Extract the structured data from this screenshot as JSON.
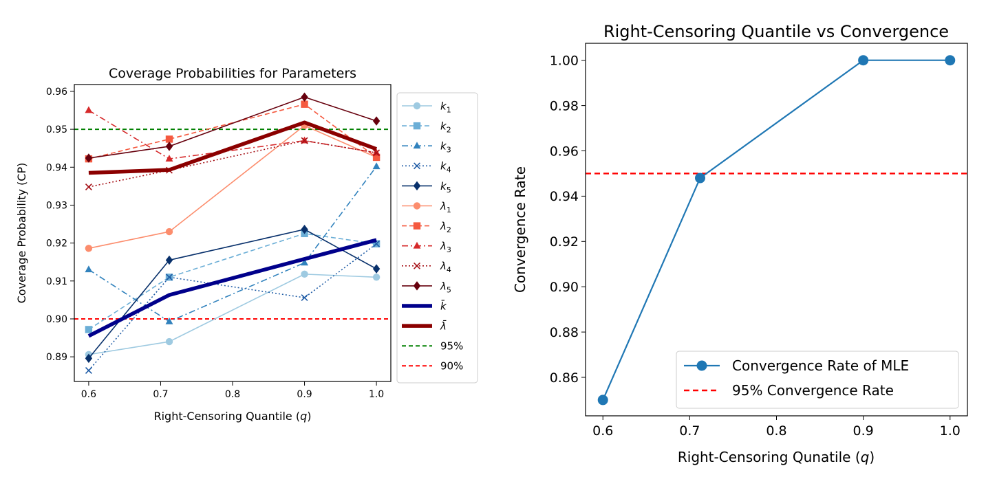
{
  "chart_data": [
    {
      "type": "line",
      "title": "Coverage Probabilities for Parameters",
      "xlabel": "Right-Censoring Quantile (q)",
      "xlabel_main": "Right-Censoring Quantile (",
      "xlabel_var": "q",
      "xlabel_close": ")",
      "ylabel": "Coverage Probability (CP)",
      "xlim": [
        0.58,
        1.02
      ],
      "ylim": [
        0.8835,
        0.9618
      ],
      "x_ticks": [
        0.6,
        0.7,
        0.8,
        0.9,
        1.0
      ],
      "x_tick_labels": [
        "0.6",
        "0.7",
        "0.8",
        "0.9",
        "1.0"
      ],
      "y_ticks": [
        0.89,
        0.9,
        0.91,
        0.92,
        0.93,
        0.94,
        0.95,
        0.96
      ],
      "y_tick_labels": [
        "0.89",
        "0.90",
        "0.91",
        "0.92",
        "0.93",
        "0.94",
        "0.95",
        "0.96"
      ],
      "grid": false,
      "legend_position": "outside-right",
      "x": [
        0.6,
        0.712,
        0.9,
        1.0
      ],
      "series": [
        {
          "name": "k1",
          "sym": "k",
          "sub": "1",
          "color": "#9ecae1",
          "dash": "",
          "marker": "circle",
          "width": 1.6,
          "values": [
            0.8906,
            0.894,
            0.9118,
            0.911
          ]
        },
        {
          "name": "k2",
          "sym": "k",
          "sub": "2",
          "color": "#6baed6",
          "dash": "7,4",
          "marker": "square",
          "width": 1.6,
          "values": [
            0.8972,
            0.911,
            0.9225,
            0.9198
          ]
        },
        {
          "name": "k3",
          "sym": "k",
          "sub": "3",
          "color": "#3182bd",
          "dash": "9,4,2,4",
          "marker": "triangle",
          "width": 1.6,
          "values": [
            0.913,
            0.8993,
            0.9148,
            0.9402
          ]
        },
        {
          "name": "k4",
          "sym": "k",
          "sub": "4",
          "color": "#1e5ba5",
          "dash": "2,3",
          "marker": "x",
          "width": 1.6,
          "values": [
            0.8864,
            0.911,
            0.9056,
            0.9198
          ]
        },
        {
          "name": "k5",
          "sym": "k",
          "sub": "5",
          "color": "#08306b",
          "dash": "",
          "marker": "diamond",
          "width": 1.6,
          "values": [
            0.8896,
            0.9155,
            0.9236,
            0.9132
          ]
        },
        {
          "name": "λ1",
          "sym": "λ",
          "sub": "1",
          "color": "#fc8d6d",
          "dash": "",
          "marker": "circle",
          "width": 1.6,
          "values": [
            0.9186,
            0.923,
            0.951,
            0.9426
          ]
        },
        {
          "name": "λ2",
          "sym": "λ",
          "sub": "2",
          "color": "#f5593f",
          "dash": "7,4",
          "marker": "square",
          "width": 1.6,
          "values": [
            0.9422,
            0.9474,
            0.9566,
            0.9426
          ]
        },
        {
          "name": "λ3",
          "sym": "λ",
          "sub": "3",
          "color": "#d6292a",
          "dash": "9,4,2,4",
          "marker": "triangle",
          "width": 1.6,
          "values": [
            0.955,
            0.9422,
            0.947,
            0.9438
          ]
        },
        {
          "name": "λ4",
          "sym": "λ",
          "sub": "4",
          "color": "#a50f15",
          "dash": "2,3",
          "marker": "x",
          "width": 1.6,
          "values": [
            0.9348,
            0.9392,
            0.947,
            0.9438
          ]
        },
        {
          "name": "λ5",
          "sym": "λ",
          "sub": "5",
          "color": "#67000d",
          "dash": "",
          "marker": "diamond",
          "width": 1.6,
          "values": [
            0.9424,
            0.9455,
            0.9585,
            0.9522
          ]
        },
        {
          "name": "k̄",
          "sym": "k̄",
          "sub": "",
          "color": "#00008b",
          "dash": "",
          "marker": "none",
          "width": 5.5,
          "values": [
            0.8955,
            0.9063,
            0.9158,
            0.9208
          ]
        },
        {
          "name": "λ̄",
          "sym": "λ̄",
          "sub": "",
          "color": "#8b0000",
          "dash": "",
          "marker": "none",
          "width": 5.5,
          "values": [
            0.9385,
            0.9393,
            0.9518,
            0.9448
          ]
        }
      ],
      "reference_lines": [
        {
          "name": "95%",
          "value": 0.95,
          "color": "#008000",
          "dash": "6,4"
        },
        {
          "name": "90%",
          "value": 0.9,
          "color": "#ff0000",
          "dash": "6,4"
        }
      ]
    },
    {
      "type": "line",
      "title": "Right-Censoring Quantile vs Convergence",
      "xlabel": "Right-Censoring Qunatile (q)",
      "xlabel_main": "Right-Censoring Qunatile (",
      "xlabel_var": "q",
      "xlabel_close": ")",
      "ylabel": "Convergence Rate",
      "xlim": [
        0.58,
        1.02
      ],
      "ylim": [
        0.843,
        1.0075
      ],
      "x_ticks": [
        0.6,
        0.7,
        0.8,
        0.9,
        1.0
      ],
      "x_tick_labels": [
        "0.6",
        "0.7",
        "0.8",
        "0.9",
        "1.0"
      ],
      "y_ticks": [
        0.86,
        0.88,
        0.9,
        0.92,
        0.94,
        0.96,
        0.98,
        1.0
      ],
      "y_tick_labels": [
        "0.86",
        "0.88",
        "0.90",
        "0.92",
        "0.94",
        "0.96",
        "0.98",
        "1.00"
      ],
      "grid": false,
      "legend_position": "lower-right",
      "x": [
        0.6,
        0.712,
        0.9,
        1.0
      ],
      "series": [
        {
          "name": "Convergence Rate of MLE",
          "color": "#1f77b4",
          "dash": "",
          "marker": "circle",
          "width": 2.2,
          "values": [
            0.85,
            0.948,
            1.0,
            1.0
          ]
        }
      ],
      "reference_lines": [
        {
          "name": "95% Convergence Rate",
          "value": 0.95,
          "color": "#ff0000",
          "dash": "8,5"
        }
      ]
    }
  ]
}
